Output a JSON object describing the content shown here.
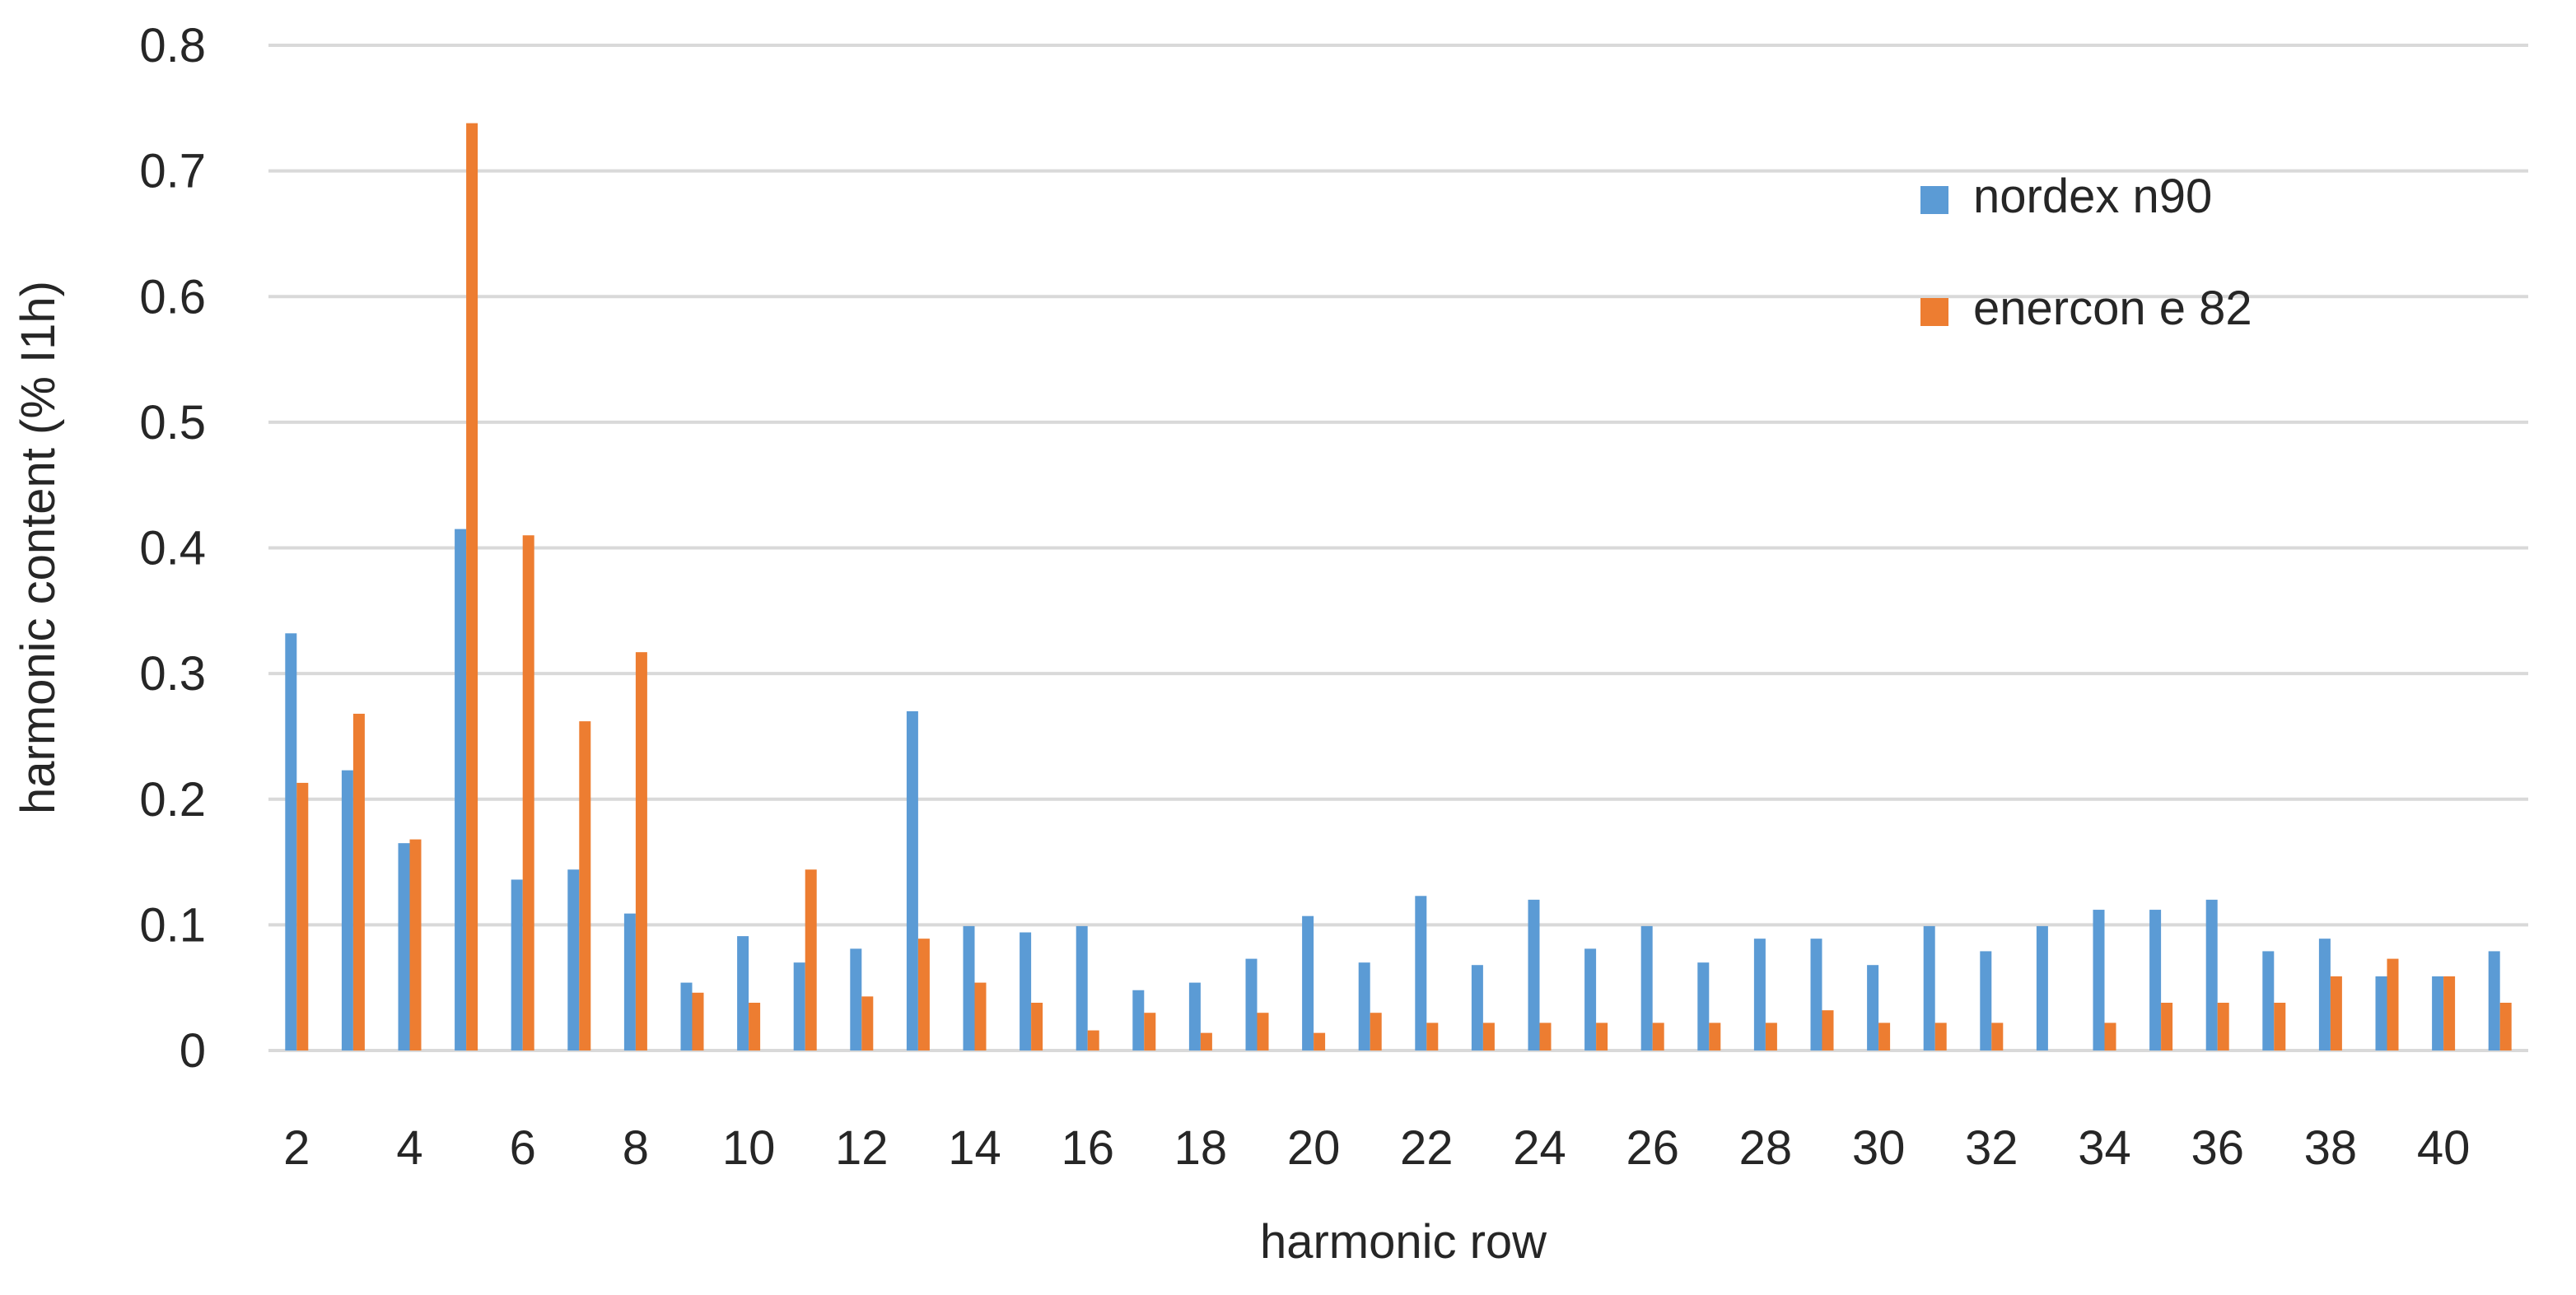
{
  "chart_data": {
    "type": "bar",
    "title": "",
    "xlabel": "harmonic row",
    "ylabel": "harmonic content (% I1h)",
    "ylim": [
      0,
      0.8
    ],
    "yticks": [
      "0",
      "0.1",
      "0.2",
      "0.3",
      "0.4",
      "0.5",
      "0.6",
      "0.7",
      "0.8"
    ],
    "grid": true,
    "legend_position": "top-right",
    "categories": [
      "2",
      "3",
      "4",
      "5",
      "6",
      "7",
      "8",
      "9",
      "10",
      "11",
      "12",
      "13",
      "14",
      "15",
      "16",
      "17",
      "18",
      "19",
      "20",
      "21",
      "22",
      "23",
      "24",
      "25",
      "26",
      "27",
      "28",
      "29",
      "30",
      "31",
      "32",
      "33",
      "34",
      "35",
      "36",
      "37",
      "38",
      "39",
      "40",
      "41"
    ],
    "xtick_labels": [
      "2",
      "",
      "4",
      "",
      "6",
      "",
      "8",
      "",
      "10",
      "",
      "12",
      "",
      "14",
      "",
      "16",
      "",
      "18",
      "",
      "20",
      "",
      "22",
      "",
      "24",
      "",
      "26",
      "",
      "28",
      "",
      "30",
      "",
      "32",
      "",
      "34",
      "",
      "36",
      "",
      "38",
      "",
      "40",
      ""
    ],
    "series": [
      {
        "name": "nordex n90",
        "color": "#5B9BD5",
        "values": [
          0.332,
          0.223,
          0.165,
          0.415,
          0.136,
          0.144,
          0.109,
          0.054,
          0.091,
          0.07,
          0.081,
          0.27,
          0.099,
          0.094,
          0.099,
          0.048,
          0.054,
          0.073,
          0.107,
          0.07,
          0.123,
          0.068,
          0.12,
          0.081,
          0.099,
          0.07,
          0.089,
          0.089,
          0.068,
          0.099,
          0.079,
          0.099,
          0.112,
          0.112,
          0.12,
          0.079,
          0.089,
          0.059,
          0.059,
          0.079
        ]
      },
      {
        "name": "enercon e 82",
        "color": "#ED7D31",
        "values": [
          0.213,
          0.268,
          0.168,
          0.738,
          0.41,
          0.262,
          0.317,
          0.046,
          0.038,
          0.144,
          0.043,
          0.089,
          0.054,
          0.038,
          0.016,
          0.03,
          0.014,
          0.03,
          0.014,
          0.03,
          0.022,
          0.022,
          0.022,
          0.022,
          0.022,
          0.022,
          0.022,
          0.032,
          0.022,
          0.022,
          0.022,
          0,
          0.022,
          0.038,
          0.038,
          0.038,
          0.059,
          0.073,
          0.059,
          0.038
        ]
      }
    ]
  }
}
